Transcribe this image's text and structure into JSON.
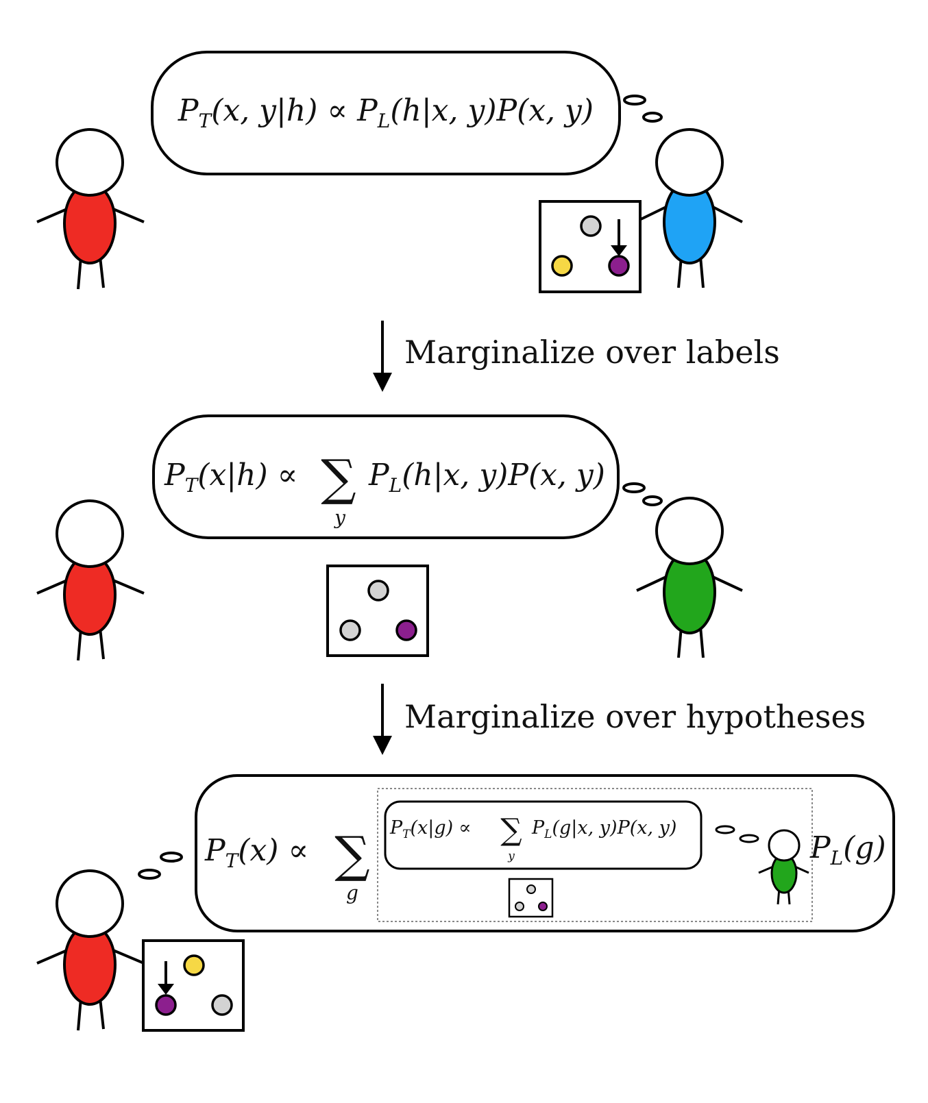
{
  "colors": {
    "red": "#ee2b24",
    "blue": "#1fa3f5",
    "green": "#22a61c",
    "yellow": "#f6d845",
    "purple": "#8c1f8e",
    "gray": "#d3d3d3",
    "ink": "#000000"
  },
  "section1": {
    "equation": {
      "lhs_sub": "T",
      "lhs_args": "(x, y|h)",
      "prop": "∝",
      "rhs1_sub": "L",
      "rhs1_args": "(h|x, y)",
      "rhs2": "P(x, y)"
    },
    "speaker": "red",
    "thinker": "blue",
    "box_balls": [
      "yellow",
      "gray",
      "purple"
    ],
    "pointed_ball": "purple"
  },
  "arrow1": {
    "label": "Marginalize over labels"
  },
  "section2": {
    "equation": {
      "lhs_sub": "T",
      "lhs_args": "(x|h)",
      "prop": "∝",
      "sum_index": "y",
      "rhs1_sub": "L",
      "rhs1_args": "(h|x, y)",
      "rhs2": "P(x, y)"
    },
    "speaker": "red",
    "thinker": "green",
    "box_balls": [
      "gray",
      "gray",
      "purple"
    ]
  },
  "arrow2": {
    "label": "Marginalize over hypotheses"
  },
  "section3": {
    "equation": {
      "lhs_sub": "T",
      "lhs_args": "(x)",
      "prop": "∝",
      "sum_index": "g",
      "tail_sub": "L",
      "tail_args": "(g)"
    },
    "inner_equation": {
      "lhs_sub": "T",
      "lhs_args": "(x|g)",
      "prop": "∝",
      "sum_index": "y",
      "rhs1_sub": "L",
      "rhs1_args": "(g|x, y)",
      "rhs2": "P(x, y)"
    },
    "inner_thinker": "green",
    "inner_box_balls": [
      "gray",
      "gray",
      "purple"
    ],
    "speaker": "red",
    "box_balls": [
      "yellow",
      "purple",
      "gray"
    ],
    "pointed_ball": "purple"
  }
}
